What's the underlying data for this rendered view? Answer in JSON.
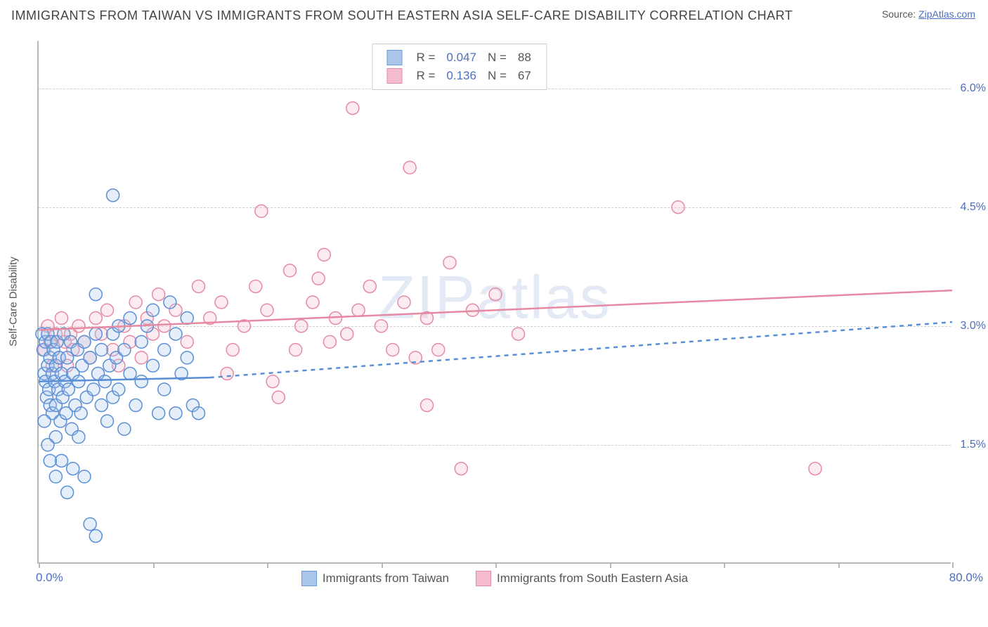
{
  "title": "IMMIGRANTS FROM TAIWAN VS IMMIGRANTS FROM SOUTH EASTERN ASIA SELF-CARE DISABILITY CORRELATION CHART",
  "source_prefix": "Source: ",
  "source_link": "ZipAtlas.com",
  "ylabel": "Self-Care Disability",
  "watermark_bold": "ZIP",
  "watermark_thin": "atlas",
  "chart": {
    "type": "scatter",
    "xlim": [
      0,
      80
    ],
    "ylim": [
      0,
      6.6
    ],
    "xlim_labels": [
      "0.0%",
      "80.0%"
    ],
    "ytick_values": [
      1.5,
      3.0,
      4.5,
      6.0
    ],
    "ytick_labels": [
      "1.5%",
      "3.0%",
      "4.5%",
      "6.0%"
    ],
    "xtick_values": [
      0,
      10,
      20,
      30,
      40,
      50,
      60,
      70,
      80
    ],
    "background_color": "#ffffff",
    "grid_color": "#d0d0d0",
    "axis_color": "#b8b8b8",
    "tick_label_color": "#4a6fbf",
    "marker_radius": 9,
    "marker_stroke_width": 1.5,
    "marker_fill_opacity": 0.3,
    "trend_line_width": 2.5,
    "trend_dash": "6 6",
    "series_a": {
      "label": "Immigrants from Taiwan",
      "stroke": "#5a8fd6",
      "fill": "#a9c6ea",
      "swatch_border": "#6a9bd8",
      "r_label": "R =",
      "r_value": "0.047",
      "n_label": "N =",
      "n_value": "88",
      "trend_solid": {
        "x1": 0,
        "y1": 2.3,
        "x2": 15,
        "y2": 2.35
      },
      "trend_dashed": {
        "x1": 15,
        "y1": 2.35,
        "x2": 80,
        "y2": 3.05
      },
      "points": [
        [
          0.3,
          2.9
        ],
        [
          0.4,
          2.7
        ],
        [
          0.5,
          2.4
        ],
        [
          0.6,
          2.8
        ],
        [
          0.6,
          2.3
        ],
        [
          0.7,
          2.1
        ],
        [
          0.8,
          2.5
        ],
        [
          0.8,
          2.9
        ],
        [
          0.9,
          2.2
        ],
        [
          1.0,
          2.6
        ],
        [
          1.0,
          2.0
        ],
        [
          1.1,
          2.8
        ],
        [
          1.2,
          2.4
        ],
        [
          1.2,
          1.9
        ],
        [
          1.3,
          2.7
        ],
        [
          1.4,
          2.3
        ],
        [
          1.5,
          2.5
        ],
        [
          1.5,
          2.0
        ],
        [
          1.6,
          2.8
        ],
        [
          1.7,
          2.2
        ],
        [
          1.8,
          2.6
        ],
        [
          1.9,
          1.8
        ],
        [
          2.0,
          2.4
        ],
        [
          2.1,
          2.1
        ],
        [
          2.2,
          2.9
        ],
        [
          2.3,
          2.3
        ],
        [
          2.4,
          1.9
        ],
        [
          2.5,
          2.6
        ],
        [
          2.6,
          2.2
        ],
        [
          2.8,
          2.8
        ],
        [
          2.9,
          1.7
        ],
        [
          3.0,
          2.4
        ],
        [
          3.2,
          2.0
        ],
        [
          3.4,
          2.7
        ],
        [
          3.5,
          2.3
        ],
        [
          3.7,
          1.9
        ],
        [
          3.8,
          2.5
        ],
        [
          4.0,
          2.8
        ],
        [
          4.2,
          2.1
        ],
        [
          4.5,
          2.6
        ],
        [
          4.8,
          2.2
        ],
        [
          5.0,
          3.4
        ],
        [
          5.0,
          2.9
        ],
        [
          5.2,
          2.4
        ],
        [
          5.5,
          2.0
        ],
        [
          5.5,
          2.7
        ],
        [
          5.8,
          2.3
        ],
        [
          6.0,
          1.8
        ],
        [
          6.2,
          2.5
        ],
        [
          6.5,
          2.9
        ],
        [
          6.5,
          2.1
        ],
        [
          6.8,
          2.6
        ],
        [
          7.0,
          3.0
        ],
        [
          7.0,
          2.2
        ],
        [
          7.5,
          2.7
        ],
        [
          7.5,
          1.7
        ],
        [
          8.0,
          2.4
        ],
        [
          8.0,
          3.1
        ],
        [
          8.5,
          2.0
        ],
        [
          9.0,
          2.8
        ],
        [
          9.0,
          2.3
        ],
        [
          9.5,
          3.0
        ],
        [
          10.0,
          2.5
        ],
        [
          10.0,
          3.2
        ],
        [
          10.5,
          1.9
        ],
        [
          11.0,
          2.7
        ],
        [
          11.0,
          2.2
        ],
        [
          11.5,
          3.3
        ],
        [
          12.0,
          2.9
        ],
        [
          12.0,
          1.9
        ],
        [
          12.5,
          2.4
        ],
        [
          13.0,
          2.6
        ],
        [
          13.0,
          3.1
        ],
        [
          1.5,
          1.6
        ],
        [
          2.0,
          1.3
        ],
        [
          3.0,
          1.2
        ],
        [
          3.5,
          1.6
        ],
        [
          4.0,
          1.1
        ],
        [
          4.5,
          0.5
        ],
        [
          5.0,
          0.35
        ],
        [
          6.5,
          4.65
        ],
        [
          0.5,
          1.8
        ],
        [
          0.8,
          1.5
        ],
        [
          1.0,
          1.3
        ],
        [
          1.5,
          1.1
        ],
        [
          2.5,
          0.9
        ],
        [
          13.5,
          2.0
        ],
        [
          14.0,
          1.9
        ]
      ]
    },
    "series_b": {
      "label": "Immigrants from South Eastern Asia",
      "stroke": "#e68aa4",
      "fill": "#f4bccc",
      "swatch_border": "#e58aa3",
      "r_label": "R =",
      "r_value": "0.136",
      "n_label": "N =",
      "n_value": "67",
      "trend_solid": {
        "x1": 0,
        "y1": 2.95,
        "x2": 80,
        "y2": 3.45
      },
      "points": [
        [
          0.5,
          2.7
        ],
        [
          0.8,
          3.0
        ],
        [
          1.0,
          2.8
        ],
        [
          1.2,
          2.5
        ],
        [
          1.5,
          2.9
        ],
        [
          1.8,
          2.6
        ],
        [
          2.0,
          3.1
        ],
        [
          2.3,
          2.8
        ],
        [
          2.5,
          2.5
        ],
        [
          2.8,
          2.9
        ],
        [
          3.0,
          2.7
        ],
        [
          3.5,
          3.0
        ],
        [
          4.0,
          2.8
        ],
        [
          4.5,
          2.6
        ],
        [
          5.0,
          3.1
        ],
        [
          5.5,
          2.9
        ],
        [
          6.0,
          3.2
        ],
        [
          6.5,
          2.7
        ],
        [
          7.0,
          2.5
        ],
        [
          7.5,
          3.0
        ],
        [
          8.0,
          2.8
        ],
        [
          8.5,
          3.3
        ],
        [
          9.0,
          2.6
        ],
        [
          9.5,
          3.1
        ],
        [
          10.0,
          2.9
        ],
        [
          10.5,
          3.4
        ],
        [
          11.0,
          3.0
        ],
        [
          12.0,
          3.2
        ],
        [
          13.0,
          2.8
        ],
        [
          14.0,
          3.5
        ],
        [
          15.0,
          3.1
        ],
        [
          16.0,
          3.3
        ],
        [
          17.0,
          2.7
        ],
        [
          18.0,
          3.0
        ],
        [
          19.0,
          3.5
        ],
        [
          19.5,
          4.45
        ],
        [
          20.0,
          3.2
        ],
        [
          20.5,
          2.3
        ],
        [
          21.0,
          2.1
        ],
        [
          22.0,
          3.7
        ],
        [
          23.0,
          3.0
        ],
        [
          24.0,
          3.3
        ],
        [
          24.5,
          3.6
        ],
        [
          25.0,
          3.9
        ],
        [
          25.5,
          2.8
        ],
        [
          26.0,
          3.1
        ],
        [
          27.0,
          2.9
        ],
        [
          27.5,
          5.75
        ],
        [
          28.0,
          3.2
        ],
        [
          29.0,
          3.5
        ],
        [
          30.0,
          3.0
        ],
        [
          31.0,
          2.7
        ],
        [
          32.0,
          3.3
        ],
        [
          32.5,
          5.0
        ],
        [
          33.0,
          2.6
        ],
        [
          34.0,
          3.1
        ],
        [
          35.0,
          2.7
        ],
        [
          36.0,
          3.8
        ],
        [
          37.0,
          1.2
        ],
        [
          38.0,
          3.2
        ],
        [
          40.0,
          3.4
        ],
        [
          42.0,
          2.9
        ],
        [
          56.0,
          4.5
        ],
        [
          68.0,
          1.2
        ],
        [
          34.0,
          2.0
        ],
        [
          16.5,
          2.4
        ],
        [
          22.5,
          2.7
        ]
      ]
    }
  }
}
